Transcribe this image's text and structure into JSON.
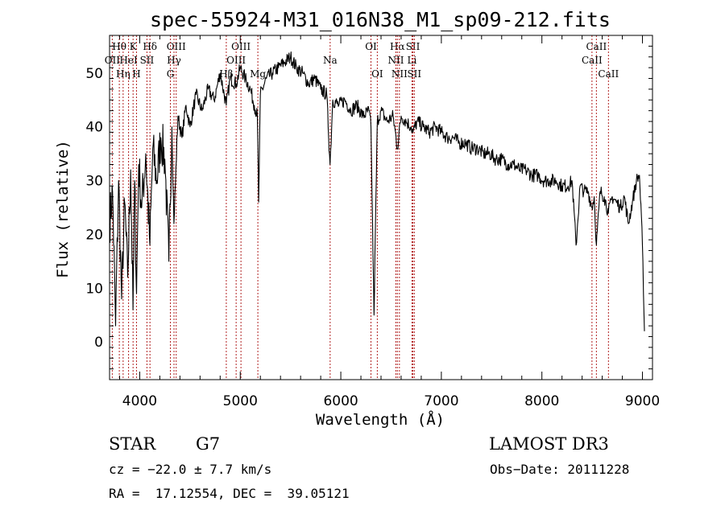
{
  "chart_data": {
    "type": "line",
    "title": "spec-55924-M31_016N38_M1_sp09-212.fits",
    "xlabel": "Wavelength (Å)",
    "ylabel": "Flux (relative)",
    "xlim": [
      3700,
      9100
    ],
    "ylim": [
      -7,
      57
    ],
    "xticks": [
      4000,
      5000,
      6000,
      7000,
      8000,
      9000
    ],
    "yticks": [
      0,
      10,
      20,
      30,
      40,
      50
    ],
    "series": [
      {
        "name": "flux",
        "x": [
          3700,
          3730,
          3760,
          3790,
          3820,
          3850,
          3880,
          3910,
          3933,
          3950,
          3968,
          3990,
          4020,
          4060,
          4101,
          4130,
          4170,
          4210,
          4250,
          4290,
          4320,
          4340,
          4380,
          4420,
          4460,
          4500,
          4560,
          4620,
          4680,
          4740,
          4800,
          4861,
          4900,
          4960,
          5000,
          5050,
          5100,
          5140,
          5170,
          5183,
          5200,
          5260,
          5320,
          5380,
          5440,
          5500,
          5560,
          5620,
          5680,
          5740,
          5800,
          5860,
          5893,
          5920,
          5980,
          6040,
          6100,
          6160,
          6220,
          6280,
          6300,
          6330,
          6363,
          6400,
          6460,
          6520,
          6563,
          6600,
          6650,
          6700,
          6717,
          6760,
          6820,
          6880,
          6940,
          7000,
          7060,
          7120,
          7180,
          7240,
          7300,
          7360,
          7420,
          7480,
          7540,
          7600,
          7660,
          7720,
          7780,
          7840,
          7900,
          7960,
          8020,
          8080,
          8140,
          8200,
          8260,
          8300,
          8340,
          8380,
          8420,
          8460,
          8498,
          8520,
          8542,
          8580,
          8620,
          8662,
          8700,
          8740,
          8780,
          8820,
          8860,
          8900,
          8940,
          8970,
          9000,
          9020
        ],
        "values": [
          22,
          28,
          3,
          30,
          8,
          26,
          12,
          32,
          6,
          30,
          9,
          33,
          25,
          35,
          18,
          36,
          30,
          38,
          34,
          15,
          40,
          22,
          42,
          38,
          44,
          40,
          46,
          43,
          47,
          45,
          50,
          44,
          49,
          48,
          51,
          49,
          47,
          44,
          42,
          26,
          46,
          49,
          50,
          51,
          52,
          53,
          51,
          50,
          48,
          49,
          47,
          46,
          33,
          45,
          44,
          45,
          43,
          44,
          42,
          43,
          40,
          5,
          41,
          43,
          41,
          42,
          36,
          42,
          41,
          40,
          39,
          41,
          40,
          39,
          40,
          39,
          38,
          38,
          37,
          37,
          36,
          36,
          35,
          35,
          34,
          34,
          33,
          33,
          32,
          32,
          31,
          31,
          30,
          30,
          30,
          29,
          29,
          30,
          18,
          29,
          28,
          28,
          25,
          27,
          18,
          28,
          27,
          24,
          27,
          26,
          25,
          27,
          22,
          26,
          30,
          31,
          18,
          2
        ]
      }
    ],
    "lines": [
      {
        "name": "Hθ",
        "x": 3797,
        "row": 1
      },
      {
        "name": "OII",
        "x": 3727,
        "row": 2
      },
      {
        "name": "Hη",
        "x": 3835,
        "row": 3
      },
      {
        "name": "K",
        "x": 3934,
        "row": 1
      },
      {
        "name": "HeI",
        "x": 3889,
        "row": 2
      },
      {
        "name": "H",
        "x": 3968,
        "row": 3
      },
      {
        "name": "Hδ",
        "x": 4102,
        "row": 1
      },
      {
        "name": "SII",
        "x": 4072,
        "row": 2
      },
      {
        "name": "OIII",
        "x": 4363,
        "row": 1
      },
      {
        "name": "Hγ",
        "x": 4341,
        "row": 2
      },
      {
        "name": "G",
        "x": 4305,
        "row": 3
      },
      {
        "name": "OIII",
        "x": 5007,
        "row": 1
      },
      {
        "name": "OIII",
        "x": 4959,
        "row": 2
      },
      {
        "name": "Hβ",
        "x": 4861,
        "row": 3
      },
      {
        "name": "Mg",
        "x": 5175,
        "row": 3
      },
      {
        "name": "Na",
        "x": 5894,
        "row": 2
      },
      {
        "name": "OI",
        "x": 6300,
        "row": 1
      },
      {
        "name": "OI",
        "x": 6363,
        "row": 3
      },
      {
        "name": "Hα",
        "x": 6563,
        "row": 1
      },
      {
        "name": "NII",
        "x": 6548,
        "row": 2
      },
      {
        "name": "NII",
        "x": 6583,
        "row": 3
      },
      {
        "name": "SII",
        "x": 6717,
        "row": 1
      },
      {
        "name": "Li",
        "x": 6708,
        "row": 2
      },
      {
        "name": "SII",
        "x": 6731,
        "row": 3
      },
      {
        "name": "CaII",
        "x": 8542,
        "row": 1
      },
      {
        "name": "CaII",
        "x": 8498,
        "row": 2
      },
      {
        "name": "CaII",
        "x": 8662,
        "row": 3
      }
    ]
  },
  "info": {
    "class": "STAR",
    "subclass": "G7",
    "survey": "LAMOST DR3",
    "cz": "cz = −22.0 ± 7.7 km/s",
    "obs_date": "Obs−Date: 20111228",
    "radec": "RA =  17.12554, DEC =  39.05121"
  }
}
